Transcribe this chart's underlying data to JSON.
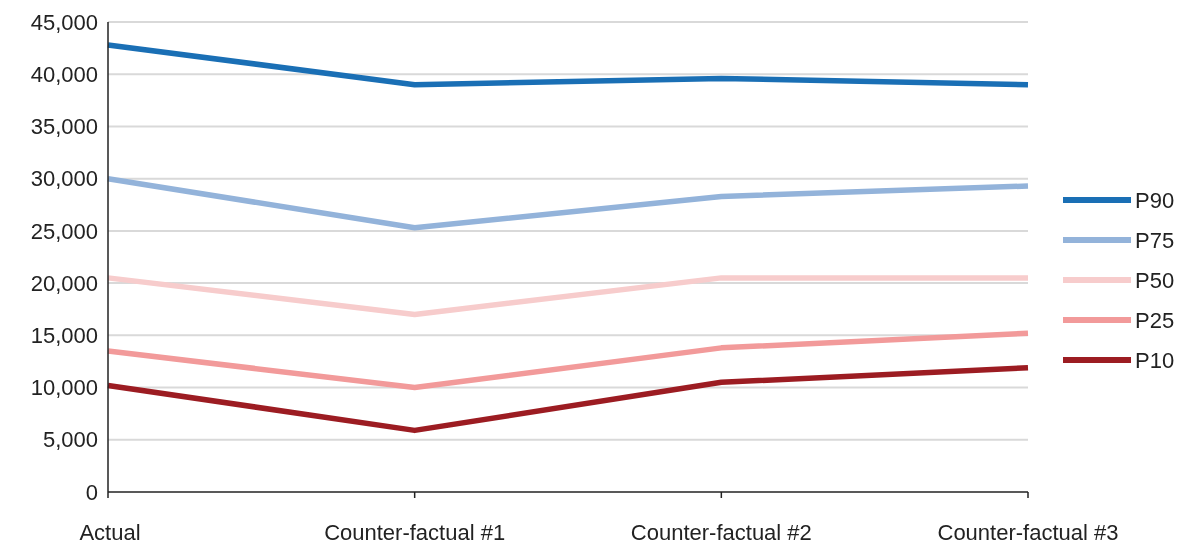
{
  "chart_data": {
    "type": "line",
    "categories": [
      "Actual",
      "Counter-factual #1",
      "Counter-factual #2",
      "Counter-factual #3"
    ],
    "series": [
      {
        "name": "P90",
        "color": "#1a6fb5",
        "values": [
          42800,
          39000,
          39600,
          39000
        ]
      },
      {
        "name": "P75",
        "color": "#93b3da",
        "values": [
          30000,
          25300,
          28300,
          29300
        ]
      },
      {
        "name": "P50",
        "color": "#f7cccc",
        "values": [
          20500,
          17000,
          20500,
          20500
        ]
      },
      {
        "name": "P25",
        "color": "#f29a9a",
        "values": [
          13500,
          10000,
          13800,
          15200
        ]
      },
      {
        "name": "P10",
        "color": "#9c1c22",
        "values": [
          10200,
          5900,
          10500,
          11900
        ]
      }
    ],
    "ylim": [
      0,
      45000
    ],
    "yticks": [
      {
        "value": 0,
        "label": "0"
      },
      {
        "value": 5000,
        "label": "5,000"
      },
      {
        "value": 10000,
        "label": "10,000"
      },
      {
        "value": 15000,
        "label": "15,000"
      },
      {
        "value": 20000,
        "label": "20,000"
      },
      {
        "value": 25000,
        "label": "25,000"
      },
      {
        "value": 30000,
        "label": "30,000"
      },
      {
        "value": 35000,
        "label": "35,000"
      },
      {
        "value": 40000,
        "label": "40,000"
      },
      {
        "value": 45000,
        "label": "45,000"
      }
    ],
    "grid": "y",
    "legend": "right",
    "marker": "none",
    "line_style": "solid"
  }
}
